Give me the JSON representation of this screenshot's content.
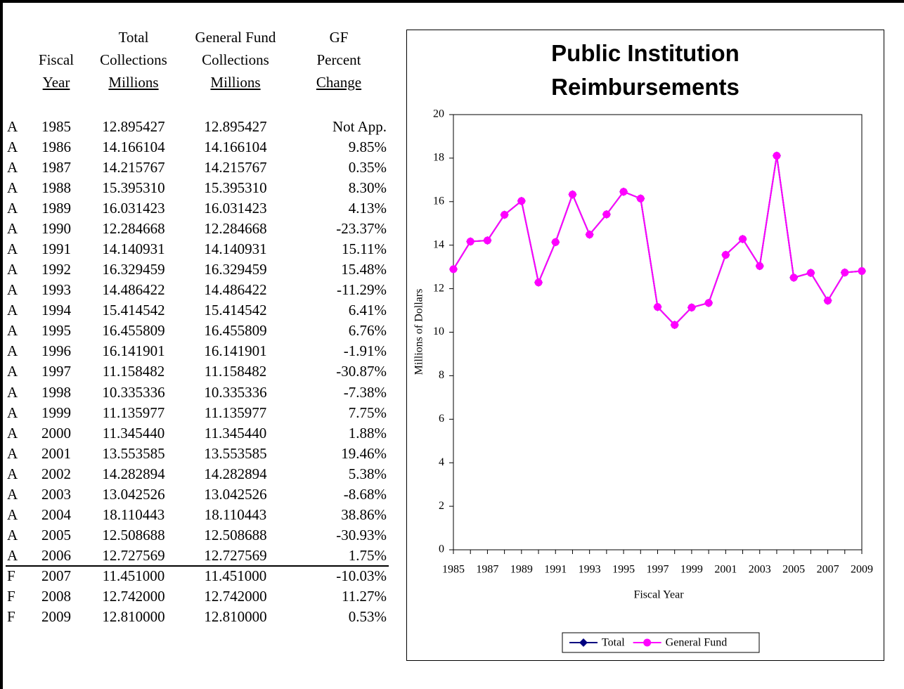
{
  "table": {
    "columns": [
      [
        "Fiscal",
        "Year"
      ],
      [
        "Total",
        "Collections",
        "Millions"
      ],
      [
        "General Fund",
        "Collections",
        "Millions"
      ],
      [
        "GF",
        "Percent",
        "Change"
      ]
    ],
    "rows": [
      [
        "A",
        "1985",
        "12.895427",
        "12.895427",
        "Not App."
      ],
      [
        "A",
        "1986",
        "14.166104",
        "14.166104",
        "9.85%"
      ],
      [
        "A",
        "1987",
        "14.215767",
        "14.215767",
        "0.35%"
      ],
      [
        "A",
        "1988",
        "15.395310",
        "15.395310",
        "8.30%"
      ],
      [
        "A",
        "1989",
        "16.031423",
        "16.031423",
        "4.13%"
      ],
      [
        "A",
        "1990",
        "12.284668",
        "12.284668",
        "-23.37%"
      ],
      [
        "A",
        "1991",
        "14.140931",
        "14.140931",
        "15.11%"
      ],
      [
        "A",
        "1992",
        "16.329459",
        "16.329459",
        "15.48%"
      ],
      [
        "A",
        "1993",
        "14.486422",
        "14.486422",
        "-11.29%"
      ],
      [
        "A",
        "1994",
        "15.414542",
        "15.414542",
        "6.41%"
      ],
      [
        "A",
        "1995",
        "16.455809",
        "16.455809",
        "6.76%"
      ],
      [
        "A",
        "1996",
        "16.141901",
        "16.141901",
        "-1.91%"
      ],
      [
        "A",
        "1997",
        "11.158482",
        "11.158482",
        "-30.87%"
      ],
      [
        "A",
        "1998",
        "10.335336",
        "10.335336",
        "-7.38%"
      ],
      [
        "A",
        "1999",
        "11.135977",
        "11.135977",
        "7.75%"
      ],
      [
        "A",
        "2000",
        "11.345440",
        "11.345440",
        "1.88%"
      ],
      [
        "A",
        "2001",
        "13.553585",
        "13.553585",
        "19.46%"
      ],
      [
        "A",
        "2002",
        "14.282894",
        "14.282894",
        "5.38%"
      ],
      [
        "A",
        "2003",
        "13.042526",
        "13.042526",
        "-8.68%"
      ],
      [
        "A",
        "2004",
        "18.110443",
        "18.110443",
        "38.86%"
      ],
      [
        "A",
        "2005",
        "12.508688",
        "12.508688",
        "-30.93%"
      ],
      [
        "A",
        "2006",
        "12.727569",
        "12.727569",
        "1.75%"
      ],
      [
        "F",
        "2007",
        "11.451000",
        "11.451000",
        "-10.03%"
      ],
      [
        "F",
        "2008",
        "12.742000",
        "12.742000",
        "11.27%"
      ],
      [
        "F",
        "2009",
        "12.810000",
        "12.810000",
        "0.53%"
      ]
    ]
  },
  "chart_data": {
    "type": "line",
    "title": "Public Institution Reimbursements",
    "x_label": "Fiscal Year",
    "y_label": "Millions of Dollars",
    "x": [
      1985,
      1986,
      1987,
      1988,
      1989,
      1990,
      1991,
      1992,
      1993,
      1994,
      1995,
      1996,
      1997,
      1998,
      1999,
      2000,
      2001,
      2002,
      2003,
      2004,
      2005,
      2006,
      2007,
      2008,
      2009
    ],
    "xlim": [
      1985,
      2009
    ],
    "xticks": [
      1985,
      1987,
      1989,
      1991,
      1993,
      1995,
      1997,
      1999,
      2001,
      2003,
      2005,
      2007,
      2009
    ],
    "ylim": [
      0,
      20
    ],
    "yticks": [
      0,
      2,
      4,
      6,
      8,
      10,
      12,
      14,
      16,
      18,
      20
    ],
    "legend": "bottom",
    "series": [
      {
        "name": "Total",
        "color": "#000080",
        "marker": "diamond",
        "values": [
          12.895427,
          14.166104,
          14.215767,
          15.39531,
          16.031423,
          12.284668,
          14.140931,
          16.329459,
          14.486422,
          15.414542,
          16.455809,
          16.141901,
          11.158482,
          10.335336,
          11.135977,
          11.34544,
          13.553585,
          14.282894,
          13.042526,
          18.110443,
          12.508688,
          12.727569,
          11.451,
          12.742,
          12.81
        ]
      },
      {
        "name": "General Fund",
        "color": "#ff00ff",
        "marker": "circle",
        "values": [
          12.895427,
          14.166104,
          14.215767,
          15.39531,
          16.031423,
          12.284668,
          14.140931,
          16.329459,
          14.486422,
          15.414542,
          16.455809,
          16.141901,
          11.158482,
          10.335336,
          11.135977,
          11.34544,
          13.553585,
          14.282894,
          13.042526,
          18.110443,
          12.508688,
          12.727569,
          11.451,
          12.742,
          12.81
        ]
      }
    ]
  }
}
